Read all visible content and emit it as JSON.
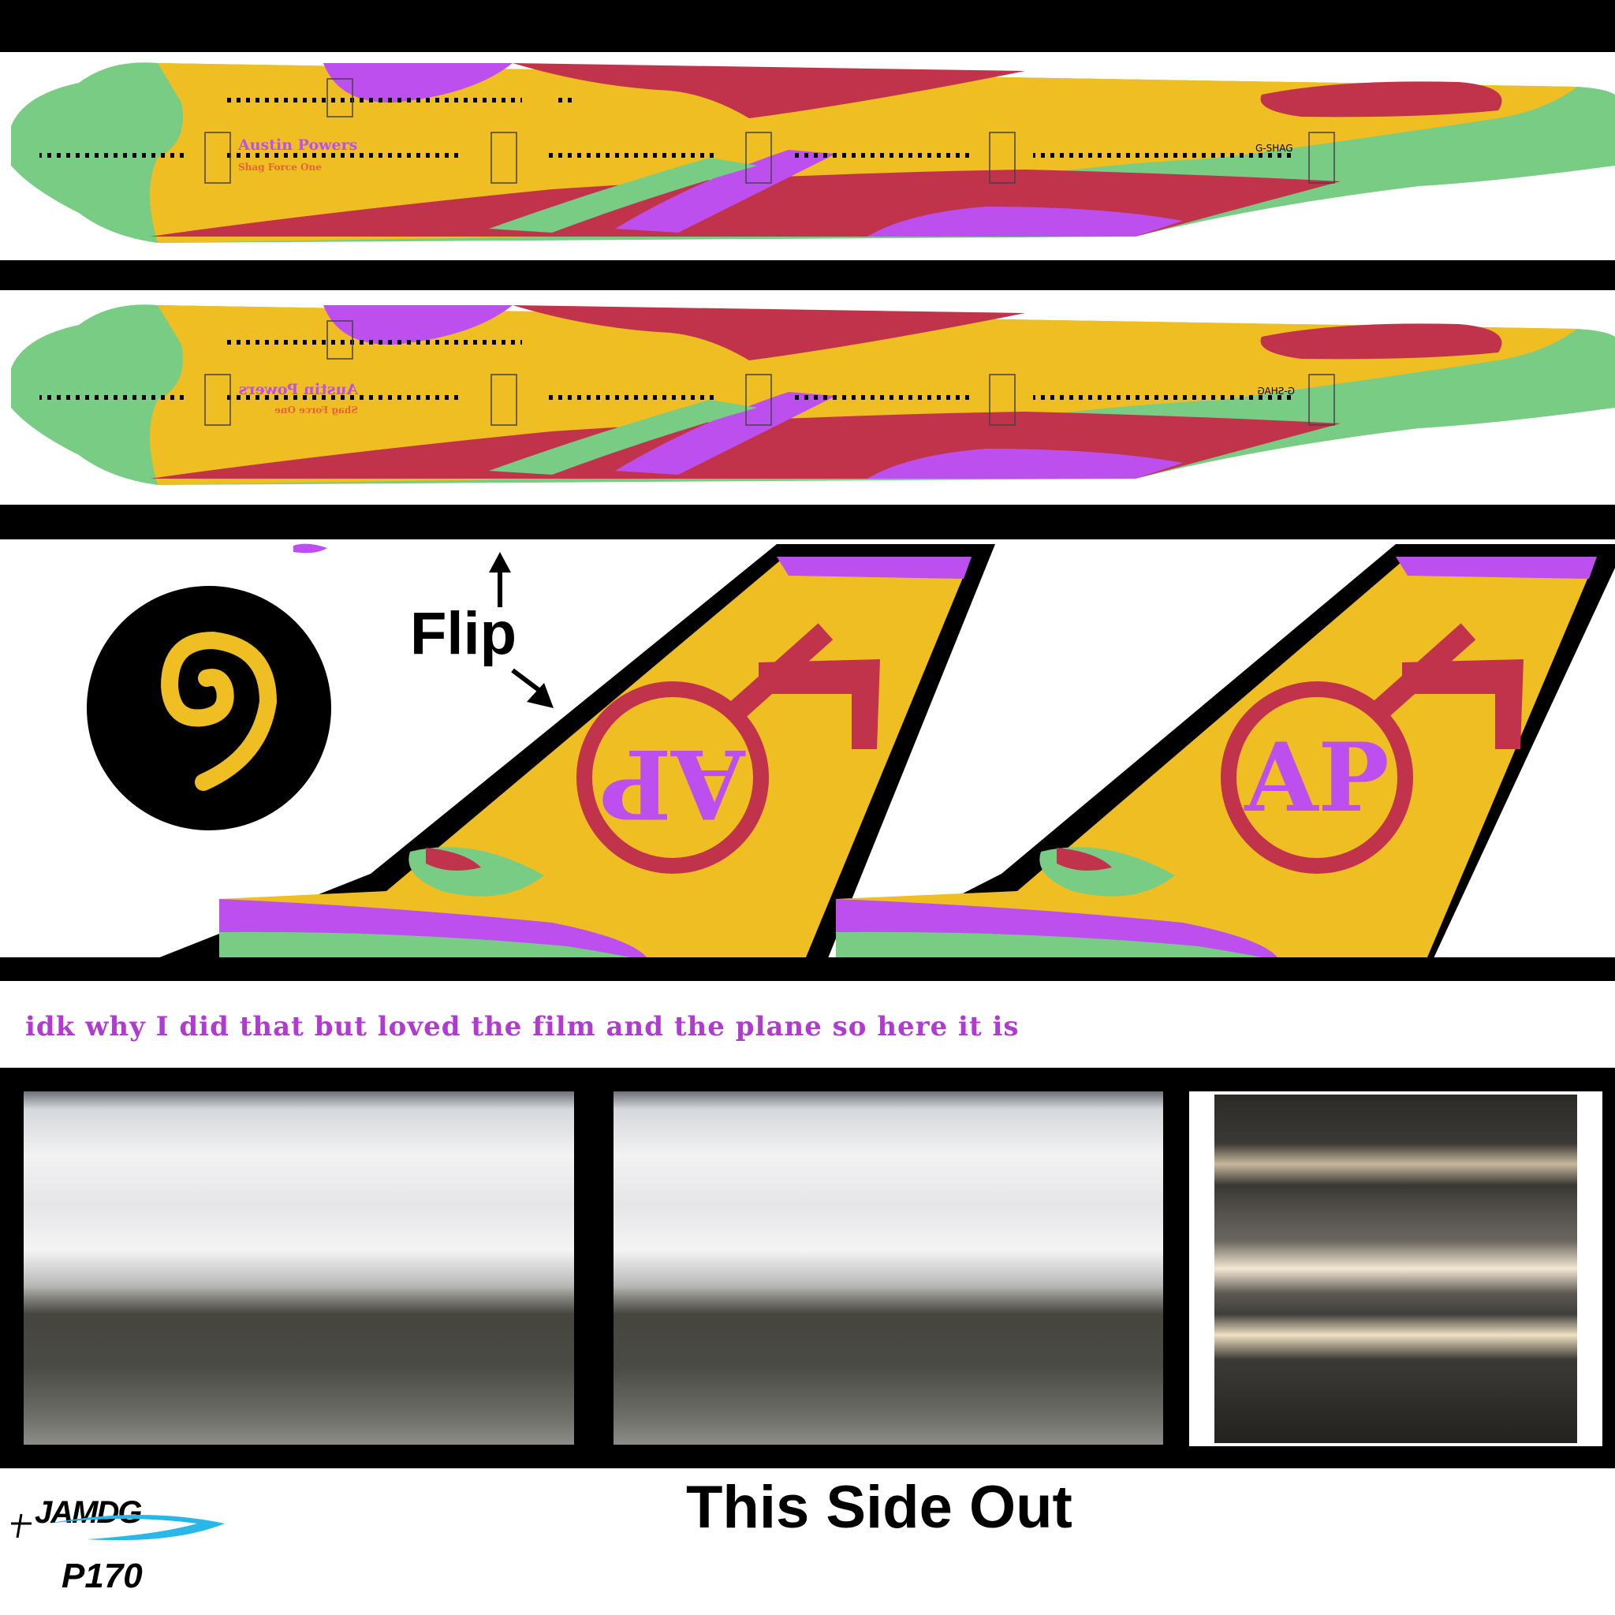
{
  "livery": {
    "fuselage_top": {
      "name": "Austin Powers",
      "subtitle": "Shag Force One",
      "registration": "G-SHAG"
    },
    "fuselage_bottom": {
      "name": "Austin Powers",
      "subtitle": "Shag Force One",
      "registration": "G-SHAG"
    },
    "tail_monogram": "AP",
    "colors": {
      "green": "#78cc84",
      "yellow": "#efbe23",
      "red": "#c1334b",
      "purple": "#bd4fef",
      "black": "#000000"
    }
  },
  "labels": {
    "flip": "Flip",
    "caption": "idk why I did that but loved the film and the plane so here it is",
    "this_side_out": "This Side Out",
    "logo": "JAMDG",
    "model_code": "P170"
  },
  "icons": [
    "spiral-icon",
    "arrow-up-icon",
    "arrow-down-right-icon",
    "male-symbol-icon"
  ]
}
